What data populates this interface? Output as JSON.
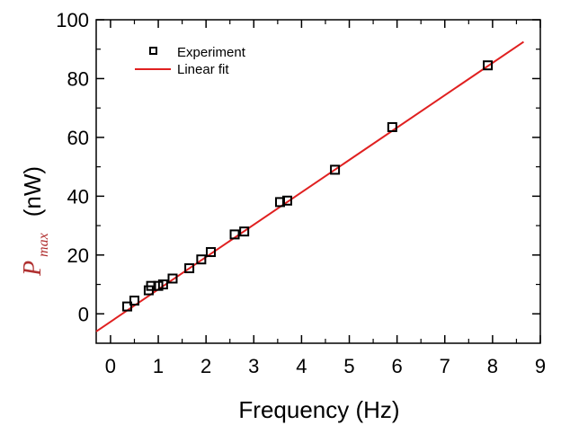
{
  "chart_data": {
    "type": "scatter",
    "xlabel": "Frequency (Hz)",
    "ylabel": {
      "symbol": "P",
      "subscript": "max",
      "unit": "(nW)"
    },
    "xlim": [
      -0.3,
      9
    ],
    "ylim": [
      -10,
      100
    ],
    "x_ticks": [
      0,
      1,
      2,
      3,
      4,
      5,
      6,
      7,
      8,
      9
    ],
    "y_ticks": [
      0,
      20,
      40,
      60,
      80,
      100
    ],
    "grid": false,
    "legend_position": "top-left",
    "series": [
      {
        "name": "Experiment",
        "marker": "open-square",
        "color": "#000000",
        "x": [
          0.35,
          0.5,
          0.8,
          0.85,
          1.0,
          1.1,
          1.3,
          1.65,
          1.9,
          2.1,
          2.6,
          2.8,
          3.55,
          3.7,
          4.7,
          5.9,
          7.9
        ],
        "y": [
          2.5,
          4.5,
          8.0,
          9.5,
          9.5,
          10.0,
          12.0,
          15.5,
          18.5,
          21.0,
          27.0,
          28.0,
          38.0,
          38.5,
          49.0,
          63.5,
          84.5
        ]
      },
      {
        "name": "Linear fit",
        "line": true,
        "color": "#e02020",
        "x": [
          -0.3,
          8.65
        ],
        "y": [
          -6.0,
          92.5
        ]
      }
    ]
  }
}
